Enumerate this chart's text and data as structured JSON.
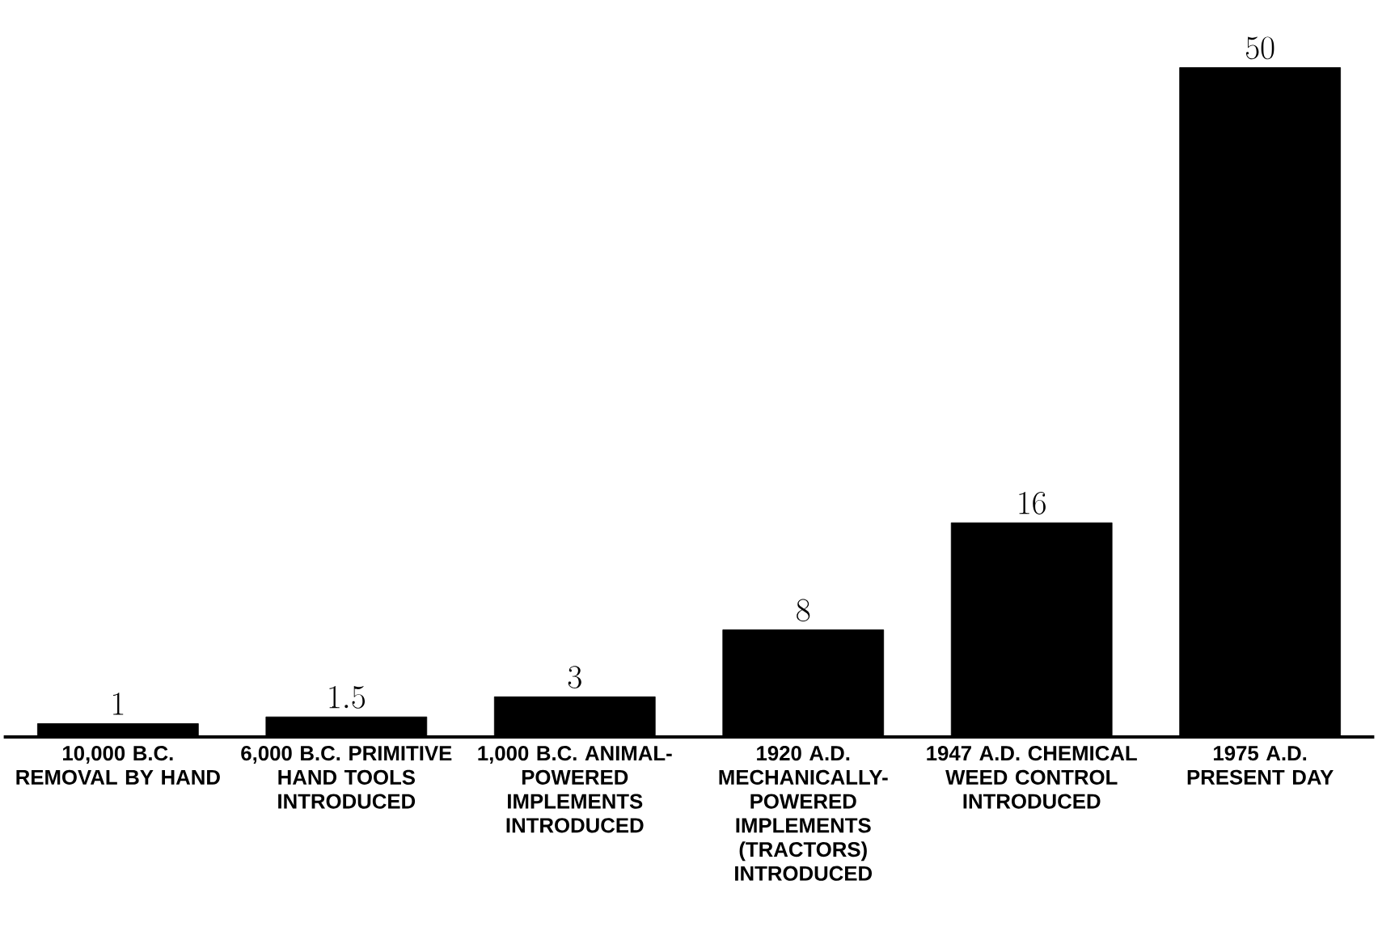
{
  "chart_data": {
    "type": "bar",
    "categories": [
      "10,000 B.C. REMOVAL BY HAND",
      "6,000 B.C. PRIMITIVE HAND TOOLS INTRODUCED",
      "1,000 B.C. ANIMAL-POWERED IMPLEMENTS INTRODUCED",
      "1920 A.D. MECHANICALLY-POWERED IMPLEMENTS (TRACTORS) INTRODUCED",
      "1947 A.D. CHEMICAL WEED CONTROL INTRODUCED",
      "1975 A.D. PRESENT DAY"
    ],
    "values": [
      1,
      1.5,
      3,
      8,
      16,
      50
    ],
    "color": "#000000",
    "data_labels": true
  }
}
